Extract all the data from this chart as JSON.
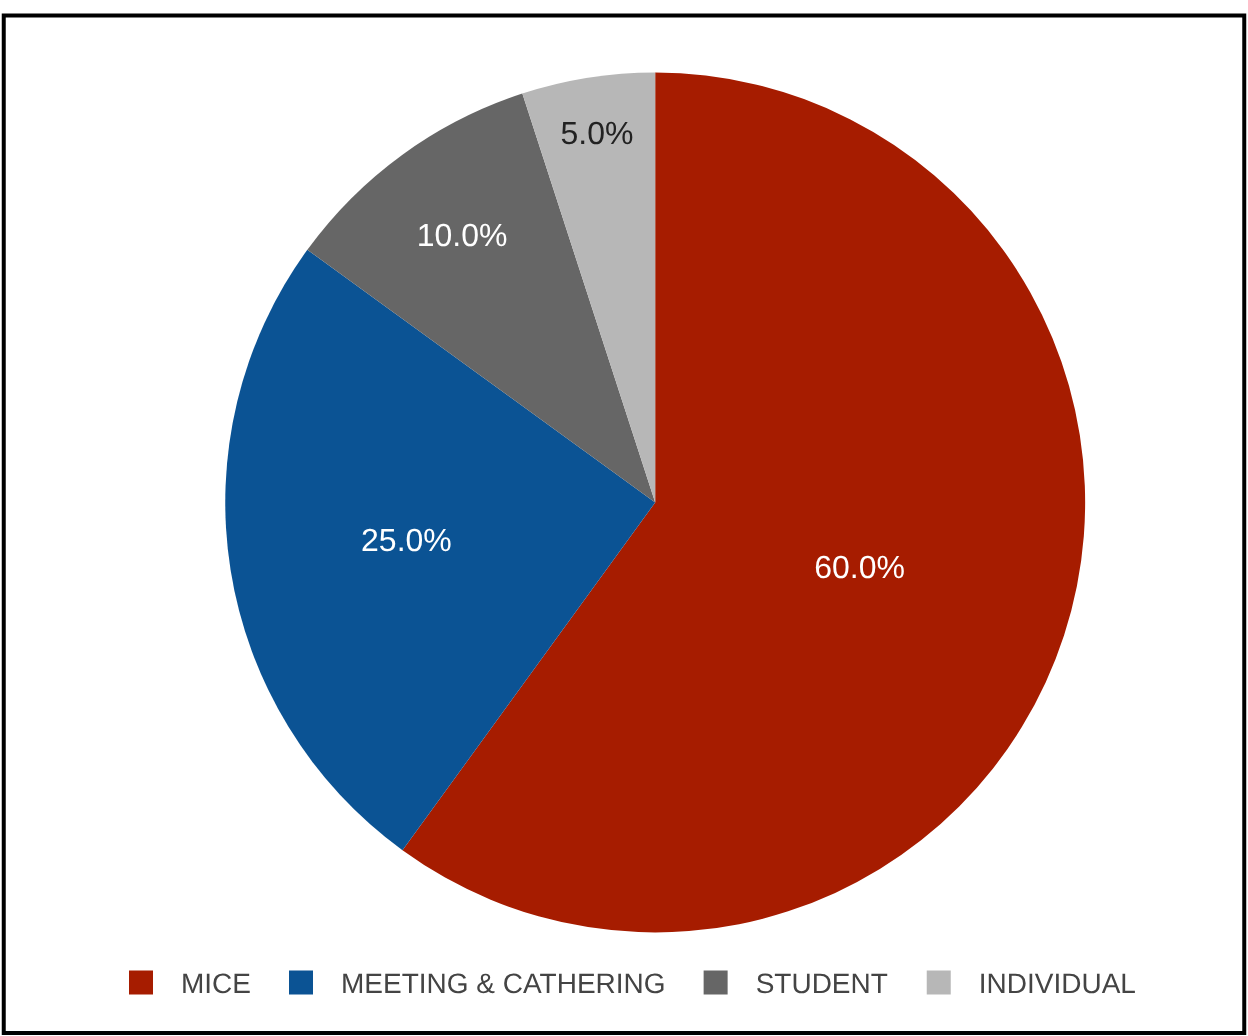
{
  "chart_data": {
    "type": "pie",
    "categories": [
      "MICE",
      "MEETING & CATHERING",
      "STUDENT",
      "INDIVIDUAL"
    ],
    "values": [
      60,
      25,
      10,
      5
    ],
    "colors": [
      "#a61c00",
      "#0b5394",
      "#666666",
      "#b7b7b7"
    ],
    "value_labels": [
      "60.0%",
      "25.0%",
      "10.0%",
      "5.0%"
    ],
    "legend": "bottom"
  }
}
